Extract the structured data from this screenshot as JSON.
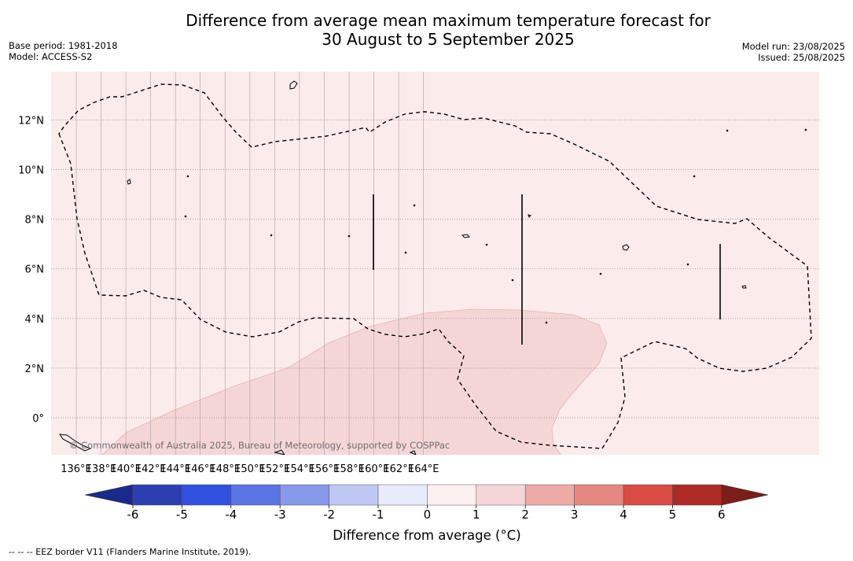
{
  "header": {
    "title_line1": "Difference from average mean maximum temperature forecast for",
    "title_line2": "30 August to 5 September 2025",
    "base_period": "Base period: 1981-2018",
    "model": "Model: ACCESS-S2",
    "model_run": "Model run: 23/08/2025",
    "issued": "Issued: 25/08/2025"
  },
  "map": {
    "lon_labels": [
      "136°E",
      "138°E",
      "140°E",
      "142°E",
      "144°E",
      "146°E",
      "148°E",
      "150°E",
      "152°E",
      "154°E",
      "156°E",
      "158°E",
      "160°E",
      "162°E",
      "164°E"
    ],
    "lat_labels": [
      "12°N",
      "10°N",
      "8°N",
      "6°N",
      "4°N",
      "2°N",
      "0°"
    ],
    "copyright": "© Commonwealth of Australia 2025, Bureau of Meteorology, supported by COSPPac",
    "background_color": "#fcebeb",
    "anomaly_region_color": "#f5d6d6"
  },
  "colorbar": {
    "colors": [
      "#2b3fb0",
      "#3050e0",
      "#5a75e4",
      "#8898ea",
      "#bfc7f3",
      "#e8ebfb",
      "#fdf0f0",
      "#f5d6d6",
      "#eeaaa5",
      "#e58880",
      "#d94b43",
      "#ad2a25"
    ],
    "min_color": "#1a2a8a",
    "max_color": "#7a1e1a",
    "tick_labels": [
      "-6",
      "-5",
      "-4",
      "-3",
      "-2",
      "-1",
      "0",
      "1",
      "2",
      "3",
      "4",
      "5",
      "6"
    ],
    "label": "Difference from average (°C)"
  },
  "footer": {
    "eez_note": "--  --  -- EEZ border V11 (Flanders Marine Institute, 2019)."
  }
}
